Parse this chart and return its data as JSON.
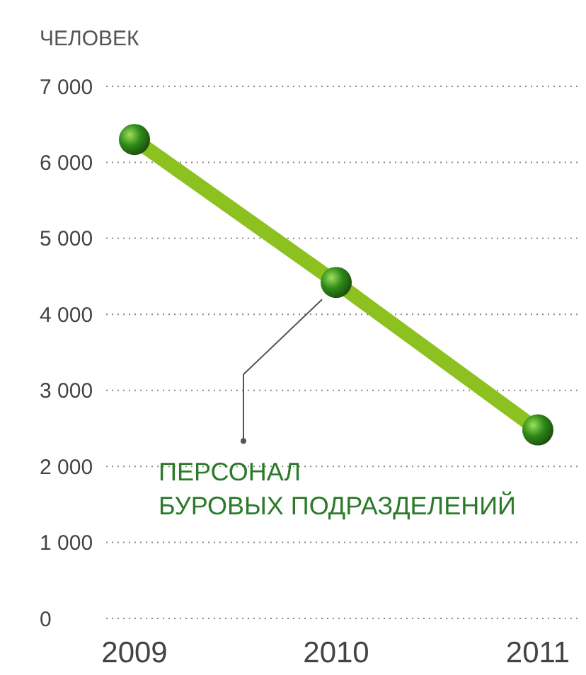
{
  "chart_data": {
    "type": "line",
    "ylabel": "ЧЕЛОВЕК",
    "categories": [
      "2009",
      "2010",
      "2011"
    ],
    "series": [
      {
        "name": "ПЕРСОНАЛ\nБУРОВЫХ ПОДРАЗДЕЛЕНИЙ",
        "color": "#8cc11f",
        "values": [
          6300,
          4420,
          2480
        ]
      }
    ],
    "ylim": [
      0,
      7000
    ],
    "yticks": [
      {
        "value": 0,
        "label": "0"
      },
      {
        "value": 1000,
        "label": "1 000"
      },
      {
        "value": 2000,
        "label": "2 000"
      },
      {
        "value": 3000,
        "label": "3 000"
      },
      {
        "value": 4000,
        "label": "4 000"
      },
      {
        "value": 5000,
        "label": "5 000"
      },
      {
        "value": 6000,
        "label": "6 000"
      },
      {
        "value": 7000,
        "label": "7 000"
      }
    ],
    "grid": "y",
    "marker": "circle",
    "line_style": "solid",
    "legend": "bottom"
  }
}
